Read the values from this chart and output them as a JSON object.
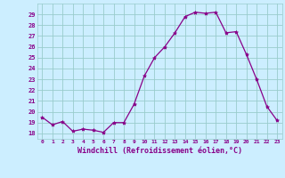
{
  "x": [
    0,
    1,
    2,
    3,
    4,
    5,
    6,
    7,
    8,
    9,
    10,
    11,
    12,
    13,
    14,
    15,
    16,
    17,
    18,
    19,
    20,
    21,
    22,
    23
  ],
  "y": [
    19.5,
    18.8,
    19.1,
    18.2,
    18.4,
    18.3,
    18.1,
    19.0,
    19.0,
    20.7,
    23.3,
    25.0,
    26.0,
    27.3,
    28.8,
    29.2,
    29.1,
    29.2,
    27.3,
    27.4,
    25.3,
    23.0,
    20.5,
    19.2
  ],
  "line_color": "#880088",
  "marker": "*",
  "marker_color": "#880088",
  "bg_color": "#cceeff",
  "grid_color": "#99cccc",
  "xlabel": "Windchill (Refroidissement éolien,°C)",
  "xlabel_color": "#880088",
  "tick_color": "#880088",
  "ylim": [
    17.5,
    30.0
  ],
  "xlim": [
    -0.5,
    23.5
  ],
  "yticks": [
    18,
    19,
    20,
    21,
    22,
    23,
    24,
    25,
    26,
    27,
    28,
    29
  ],
  "xticks": [
    0,
    1,
    2,
    3,
    4,
    5,
    6,
    7,
    8,
    9,
    10,
    11,
    12,
    13,
    14,
    15,
    16,
    17,
    18,
    19,
    20,
    21,
    22,
    23
  ],
  "xtick_labels": [
    "0",
    "1",
    "2",
    "3",
    "4",
    "5",
    "6",
    "7",
    "8",
    "9",
    "10",
    "11",
    "12",
    "13",
    "14",
    "15",
    "16",
    "17",
    "18",
    "19",
    "20",
    "21",
    "22",
    "23"
  ]
}
